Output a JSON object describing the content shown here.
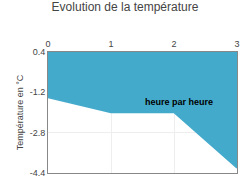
{
  "chart_data": {
    "type": "line",
    "title": "Evolution de la température",
    "ylabel": "Température en °C",
    "x": [
      0,
      1,
      2,
      3
    ],
    "values": [
      -1.4,
      -2.0,
      -2.0,
      -4.2
    ],
    "color": "#44aacc",
    "xlim": [
      0,
      3
    ],
    "xticks": [
      0,
      1,
      2,
      3
    ],
    "ylim": [
      -4.4,
      0.4
    ],
    "yticks": [
      0.4,
      -1.2,
      -2.8,
      -4.4
    ],
    "grid": true,
    "annotations": [
      {
        "text": "heure par heure",
        "x": 1.5,
        "y": -1.3
      }
    ]
  }
}
